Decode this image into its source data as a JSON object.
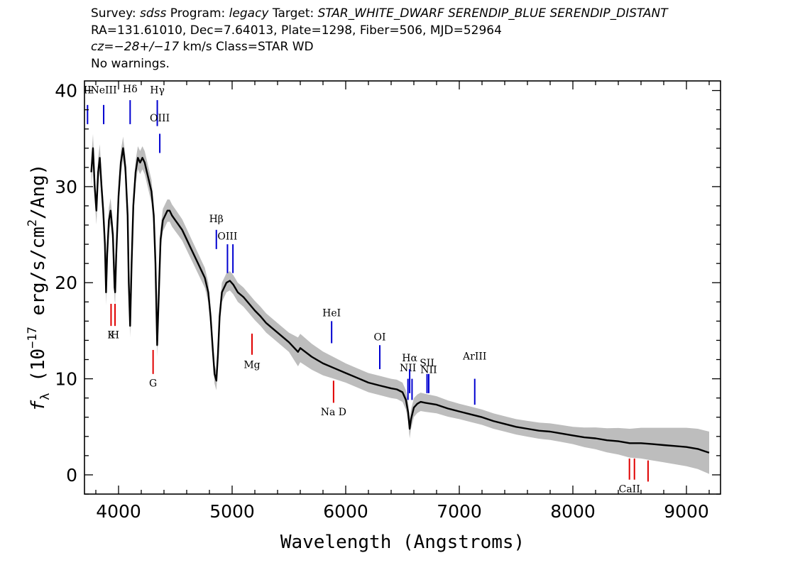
{
  "header": {
    "line1": {
      "survey_key": "Survey: ",
      "survey": "sdss",
      "program_key": " Program: ",
      "program": "legacy",
      "target_key": " Target: ",
      "target": "STAR_WHITE_DWARF SERENDIP_BLUE SERENDIP_DISTANT"
    },
    "line2": "RA=131.61010, Dec=7.64013, Plate=1298, Fiber=506, MJD=52964",
    "line3": {
      "cz_key": "cz",
      "cz_value": "=−28+/−17",
      "rest": " km/s Class=STAR WD"
    },
    "line4": "No warnings."
  },
  "chart_data": {
    "type": "line",
    "xlabel": "Wavelength (Angstroms)",
    "ylabel": "f_λ (10^-17 erg/s/cm^2/Ang)",
    "ylabel_parts": {
      "f": "f",
      "sub": "λ",
      "open": " (10",
      "exp1": "−17",
      "mid": " erg/s/cm",
      "exp2": "2",
      "close": "/Ang)"
    },
    "xlim": [
      3700,
      9300
    ],
    "ylim": [
      -2,
      41
    ],
    "x_ticks": [
      4000,
      5000,
      6000,
      7000,
      8000,
      9000
    ],
    "x_tick_labels": [
      "4000",
      "5000",
      "6000",
      "7000",
      "8000",
      "9000"
    ],
    "y_ticks": [
      0,
      10,
      20,
      30,
      40
    ],
    "y_tick_labels": [
      "0",
      "10",
      "20",
      "30",
      "40"
    ],
    "colors": {
      "flux": "#000000",
      "noise": "#bdbdbd",
      "emission": "#0000d0",
      "absorption": "#e00000"
    },
    "series": [
      {
        "style": "smoothed flux",
        "x": [
          3760,
          3775,
          3790,
          3805,
          3820,
          3835,
          3850,
          3865,
          3880,
          3890,
          3900,
          3915,
          3930,
          3950,
          3965,
          3970,
          3980,
          4000,
          4020,
          4040,
          4060,
          4080,
          4090,
          4102,
          4115,
          4130,
          4150,
          4170,
          4190,
          4210,
          4230,
          4250,
          4270,
          4290,
          4310,
          4325,
          4340,
          4355,
          4370,
          4390,
          4410,
          4430,
          4450,
          4470,
          4500,
          4530,
          4560,
          4600,
          4640,
          4680,
          4720,
          4760,
          4790,
          4810,
          4830,
          4845,
          4861,
          4875,
          4890,
          4910,
          4930,
          4950,
          4980,
          5010,
          5050,
          5100,
          5150,
          5200,
          5250,
          5300,
          5400,
          5500,
          5580,
          5600,
          5700,
          5800,
          5900,
          6000,
          6100,
          6200,
          6300,
          6400,
          6450,
          6500,
          6530,
          6550,
          6563,
          6575,
          6600,
          6630,
          6660,
          6700,
          6800,
          6900,
          7000,
          7100,
          7200,
          7300,
          7400,
          7500,
          7600,
          7700,
          7800,
          7900,
          8000,
          8100,
          8200,
          8300,
          8400,
          8500,
          8600,
          8700,
          8800,
          8900,
          9000,
          9100,
          9200
        ],
        "y": [
          31.5,
          34,
          30,
          27.5,
          31.5,
          33,
          30,
          27.5,
          24,
          19,
          23,
          26.5,
          27.5,
          25,
          19.5,
          19,
          23,
          29,
          32.5,
          34,
          32,
          27,
          20,
          15.5,
          22,
          28,
          31.5,
          33,
          32.5,
          33,
          32.5,
          31.5,
          30.5,
          29.5,
          27,
          22,
          13.5,
          19,
          24.5,
          26.5,
          27,
          27.5,
          27.5,
          27,
          26.5,
          26,
          25.5,
          24.5,
          23.5,
          22.5,
          21.5,
          20.5,
          19,
          16.5,
          13,
          10.5,
          9.8,
          12.5,
          16.5,
          19,
          19.5,
          20,
          20.2,
          19.8,
          19,
          18.5,
          17.8,
          17.1,
          16.5,
          15.8,
          14.8,
          13.8,
          12.8,
          13.2,
          12.3,
          11.6,
          11.1,
          10.6,
          10.1,
          9.6,
          9.3,
          9,
          8.9,
          8.6,
          7.8,
          6.5,
          4.8,
          5.8,
          7,
          7.4,
          7.6,
          7.5,
          7.3,
          6.9,
          6.6,
          6.3,
          6,
          5.6,
          5.3,
          5,
          4.8,
          4.6,
          4.5,
          4.3,
          4.1,
          3.9,
          3.8,
          3.6,
          3.5,
          3.3,
          3.3,
          3.2,
          3.1,
          3,
          2.9,
          2.7,
          2.3
        ]
      },
      {
        "style": "noise envelope",
        "x": [
          3760,
          4000,
          4340,
          4861,
          5000,
          5500,
          5580,
          6000,
          6563,
          7000,
          7500,
          8000,
          8500,
          9000,
          9200
        ],
        "y_half_width": [
          1.5,
          1.2,
          1.2,
          1.0,
          1.0,
          1.0,
          1.5,
          1.0,
          1.0,
          0.8,
          0.8,
          0.9,
          1.5,
          2.0,
          2.2
        ]
      }
    ],
    "emission_lines": [
      {
        "label": "II",
        "x": 3727,
        "y_label": 39.7,
        "y_from": 36.5,
        "y_to": 38.5
      },
      {
        "label": "NeIII",
        "x": 3869,
        "y_label": 39.7,
        "y_from": 36.5,
        "y_to": 38.5
      },
      {
        "label": "Hδ",
        "x": 4102,
        "y_label": 39.8,
        "y_from": 36.5,
        "y_to": 39
      },
      {
        "label": "Hγ",
        "x": 4341,
        "y_label": 39.7,
        "y_from": 36.3,
        "y_to": 39
      },
      {
        "label": "OIII",
        "x": 4363,
        "y_label": 36.8,
        "y_from": 33.5,
        "y_to": 35.5
      },
      {
        "label": "Hβ",
        "x": 4861,
        "y_label": 26.3,
        "y_from": 23.5,
        "y_to": 25.5
      },
      {
        "label": "OIII",
        "x": 4959,
        "y_label": 24.5,
        "y_from": 21,
        "y_to": 24
      },
      {
        "label": "",
        "x": 5007,
        "y_label": 0,
        "y_from": 21,
        "y_to": 24
      },
      {
        "label": "HeI",
        "x": 5876,
        "y_label": 16.5,
        "y_from": 13.7,
        "y_to": 16
      },
      {
        "label": "OI",
        "x": 6300,
        "y_label": 14,
        "y_from": 11,
        "y_to": 13.5
      },
      {
        "label": "NII",
        "x": 6548,
        "y_label": 10.8,
        "y_from": 7.8,
        "y_to": 10
      },
      {
        "label": "Hα",
        "x": 6563,
        "y_label": 11.8,
        "y_from": 8.5,
        "y_to": 11
      },
      {
        "label": "",
        "x": 6584,
        "y_label": 0,
        "y_from": 7.8,
        "y_to": 10
      },
      {
        "label": "SII",
        "x": 6716,
        "y_label": 11.3,
        "y_from": 8.5,
        "y_to": 10.5
      },
      {
        "label": "NII",
        "x": 6731,
        "y_label": 10.6,
        "y_from": 8.5,
        "y_to": 10.5
      },
      {
        "label": "ArIII",
        "x": 7136,
        "y_label": 12,
        "y_from": 7.3,
        "y_to": 10
      }
    ],
    "absorption_lines": [
      {
        "label": "K",
        "x": 3934,
        "y_label": 14.2,
        "y_from": 15.5,
        "y_to": 17.8
      },
      {
        "label": "H",
        "x": 3969,
        "y_label": 14.2,
        "y_from": 15.5,
        "y_to": 17.8
      },
      {
        "label": "G",
        "x": 4304,
        "y_label": 9.2,
        "y_from": 10.5,
        "y_to": 13
      },
      {
        "label": "Mg",
        "x": 5175,
        "y_label": 11.1,
        "y_from": 12.5,
        "y_to": 14.7
      },
      {
        "label": "Na D",
        "x": 5893,
        "y_label": 6.2,
        "y_from": 7.5,
        "y_to": 9.8
      },
      {
        "label": "CaII",
        "x": 8498,
        "y_label": -1.8,
        "y_from": -0.5,
        "y_to": 1.7
      },
      {
        "label": "",
        "x": 8542,
        "y_label": 0,
        "y_from": -0.5,
        "y_to": 1.7
      },
      {
        "label": "",
        "x": 8662,
        "y_label": 0,
        "y_from": -0.7,
        "y_to": 1.5
      }
    ]
  }
}
